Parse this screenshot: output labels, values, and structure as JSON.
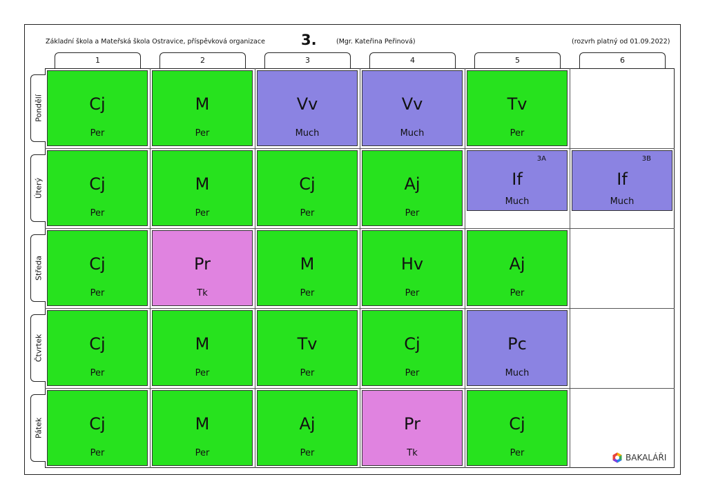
{
  "header": {
    "school": "Základní škola a Mateřská škola Ostravice, příspěvková organizace",
    "class": "3.",
    "teacher": "(Mgr. Kateřina Peřinová)",
    "validity": "(rozvrh platný od 01.09.2022)"
  },
  "periods": [
    "1",
    "2",
    "3",
    "4",
    "5",
    "6"
  ],
  "days": [
    "Pondělí",
    "Úterý",
    "Středa",
    "Čtvrtek",
    "Pátek"
  ],
  "colors": {
    "green": "#27E21E",
    "blue": "#8B83E2",
    "pink": "#E083E0"
  },
  "lessons": [
    [
      {
        "s": "Cj",
        "t": "Per",
        "c": "green"
      },
      {
        "s": "M",
        "t": "Per",
        "c": "green"
      },
      {
        "s": "Vv",
        "t": "Much",
        "c": "blue"
      },
      {
        "s": "Vv",
        "t": "Much",
        "c": "blue"
      },
      {
        "s": "Tv",
        "t": "Per",
        "c": "green"
      },
      null
    ],
    [
      {
        "s": "Cj",
        "t": "Per",
        "c": "green"
      },
      {
        "s": "M",
        "t": "Per",
        "c": "green"
      },
      {
        "s": "Cj",
        "t": "Per",
        "c": "green"
      },
      {
        "s": "Aj",
        "t": "Per",
        "c": "green"
      },
      {
        "s": "If",
        "t": "Much",
        "c": "blue",
        "g": "3A",
        "half": true
      },
      {
        "s": "If",
        "t": "Much",
        "c": "blue",
        "g": "3B",
        "half": true
      }
    ],
    [
      {
        "s": "Cj",
        "t": "Per",
        "c": "green"
      },
      {
        "s": "Pr",
        "t": "Tk",
        "c": "pink"
      },
      {
        "s": "M",
        "t": "Per",
        "c": "green"
      },
      {
        "s": "Hv",
        "t": "Per",
        "c": "green"
      },
      {
        "s": "Aj",
        "t": "Per",
        "c": "green"
      },
      null
    ],
    [
      {
        "s": "Cj",
        "t": "Per",
        "c": "green"
      },
      {
        "s": "M",
        "t": "Per",
        "c": "green"
      },
      {
        "s": "Tv",
        "t": "Per",
        "c": "green"
      },
      {
        "s": "Cj",
        "t": "Per",
        "c": "green"
      },
      {
        "s": "Pc",
        "t": "Much",
        "c": "blue"
      },
      null
    ],
    [
      {
        "s": "Cj",
        "t": "Per",
        "c": "green"
      },
      {
        "s": "M",
        "t": "Per",
        "c": "green"
      },
      {
        "s": "Aj",
        "t": "Per",
        "c": "green"
      },
      {
        "s": "Pr",
        "t": "Tk",
        "c": "pink"
      },
      {
        "s": "Cj",
        "t": "Per",
        "c": "green"
      },
      null
    ]
  ],
  "brand": {
    "name": "BAKALÁŘI",
    "icon": "bakalari-logo-icon"
  }
}
